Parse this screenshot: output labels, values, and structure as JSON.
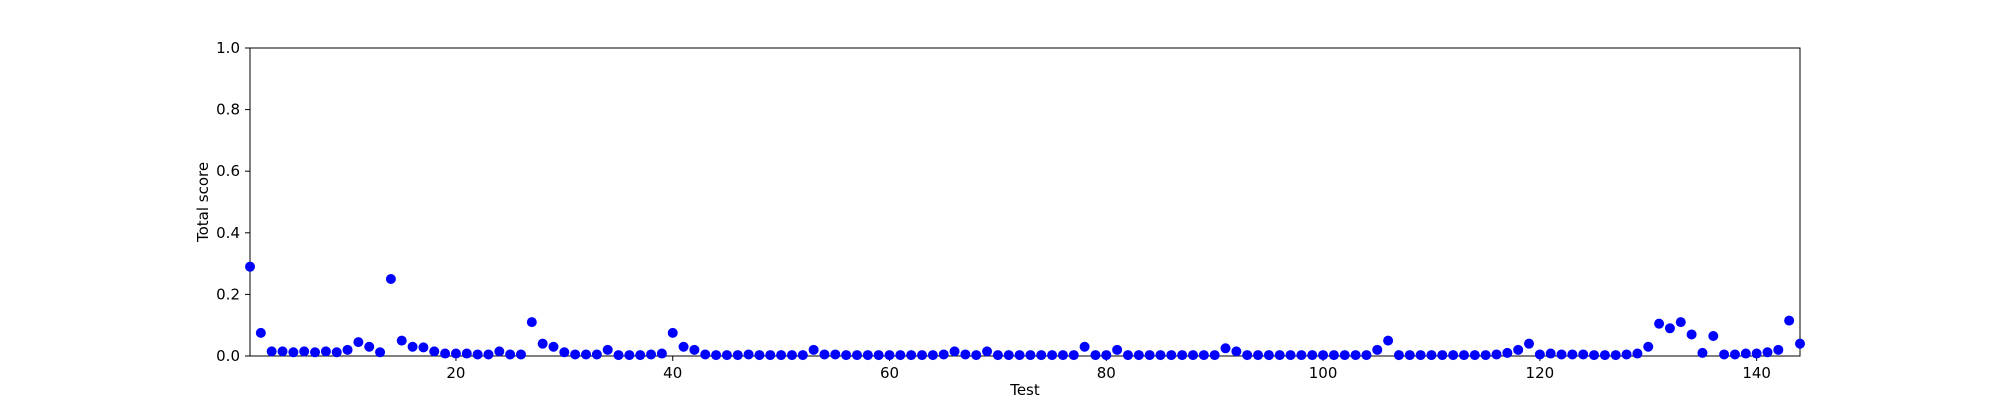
{
  "chart_data": {
    "type": "scatter",
    "title": "",
    "xlabel": "Test",
    "ylabel": "Total score",
    "xlim": [
      1,
      144
    ],
    "ylim": [
      0,
      1.0
    ],
    "x_ticks": [
      20,
      40,
      60,
      80,
      100,
      120,
      140
    ],
    "y_ticks": [
      "0.0",
      "0.2",
      "0.4",
      "0.6",
      "0.8",
      "1.0"
    ],
    "grid": false,
    "legend": "none",
    "series": [
      {
        "color": "#0000ff",
        "x": [
          1,
          2,
          3,
          4,
          5,
          6,
          7,
          8,
          9,
          10,
          11,
          12,
          13,
          14,
          15,
          16,
          17,
          18,
          19,
          20,
          21,
          22,
          23,
          24,
          25,
          26,
          27,
          28,
          29,
          30,
          31,
          32,
          33,
          34,
          35,
          36,
          37,
          38,
          39,
          40,
          41,
          42,
          43,
          44,
          45,
          46,
          47,
          48,
          49,
          50,
          51,
          52,
          53,
          54,
          55,
          56,
          57,
          58,
          59,
          60,
          61,
          62,
          63,
          64,
          65,
          66,
          67,
          68,
          69,
          70,
          71,
          72,
          73,
          74,
          75,
          76,
          77,
          78,
          79,
          80,
          81,
          82,
          83,
          84,
          85,
          86,
          87,
          88,
          89,
          90,
          91,
          92,
          93,
          94,
          95,
          96,
          97,
          98,
          99,
          100,
          101,
          102,
          103,
          104,
          105,
          106,
          107,
          108,
          109,
          110,
          111,
          112,
          113,
          114,
          115,
          116,
          117,
          118,
          119,
          120,
          121,
          122,
          123,
          124,
          125,
          126,
          127,
          128,
          129,
          130,
          131,
          132,
          133,
          134,
          135,
          136,
          137,
          138,
          139,
          140,
          141,
          142,
          143,
          144
        ],
        "y": [
          0.29,
          0.075,
          0.015,
          0.015,
          0.012,
          0.015,
          0.012,
          0.015,
          0.012,
          0.02,
          0.045,
          0.03,
          0.012,
          0.25,
          0.05,
          0.03,
          0.028,
          0.015,
          0.008,
          0.008,
          0.008,
          0.005,
          0.005,
          0.015,
          0.005,
          0.005,
          0.11,
          0.04,
          0.03,
          0.012,
          0.005,
          0.005,
          0.005,
          0.02,
          0.003,
          0.003,
          0.003,
          0.005,
          0.008,
          0.075,
          0.03,
          0.02,
          0.005,
          0.003,
          0.003,
          0.003,
          0.005,
          0.003,
          0.003,
          0.003,
          0.003,
          0.003,
          0.02,
          0.005,
          0.005,
          0.003,
          0.003,
          0.003,
          0.003,
          0.003,
          0.003,
          0.003,
          0.003,
          0.003,
          0.005,
          0.015,
          0.005,
          0.003,
          0.015,
          0.003,
          0.003,
          0.003,
          0.003,
          0.003,
          0.003,
          0.003,
          0.003,
          0.03,
          0.003,
          0.003,
          0.02,
          0.003,
          0.003,
          0.003,
          0.003,
          0.003,
          0.003,
          0.003,
          0.003,
          0.003,
          0.025,
          0.015,
          0.003,
          0.003,
          0.003,
          0.003,
          0.003,
          0.003,
          0.003,
          0.003,
          0.003,
          0.003,
          0.003,
          0.003,
          0.02,
          0.05,
          0.003,
          0.003,
          0.003,
          0.003,
          0.003,
          0.003,
          0.003,
          0.003,
          0.003,
          0.005,
          0.01,
          0.02,
          0.04,
          0.005,
          0.008,
          0.005,
          0.005,
          0.005,
          0.003,
          0.003,
          0.003,
          0.005,
          0.008,
          0.03,
          0.105,
          0.09,
          0.11,
          0.07,
          0.01,
          0.065,
          0.005,
          0.005,
          0.008,
          0.008,
          0.012,
          0.02,
          0.115,
          0.04
        ]
      }
    ]
  }
}
